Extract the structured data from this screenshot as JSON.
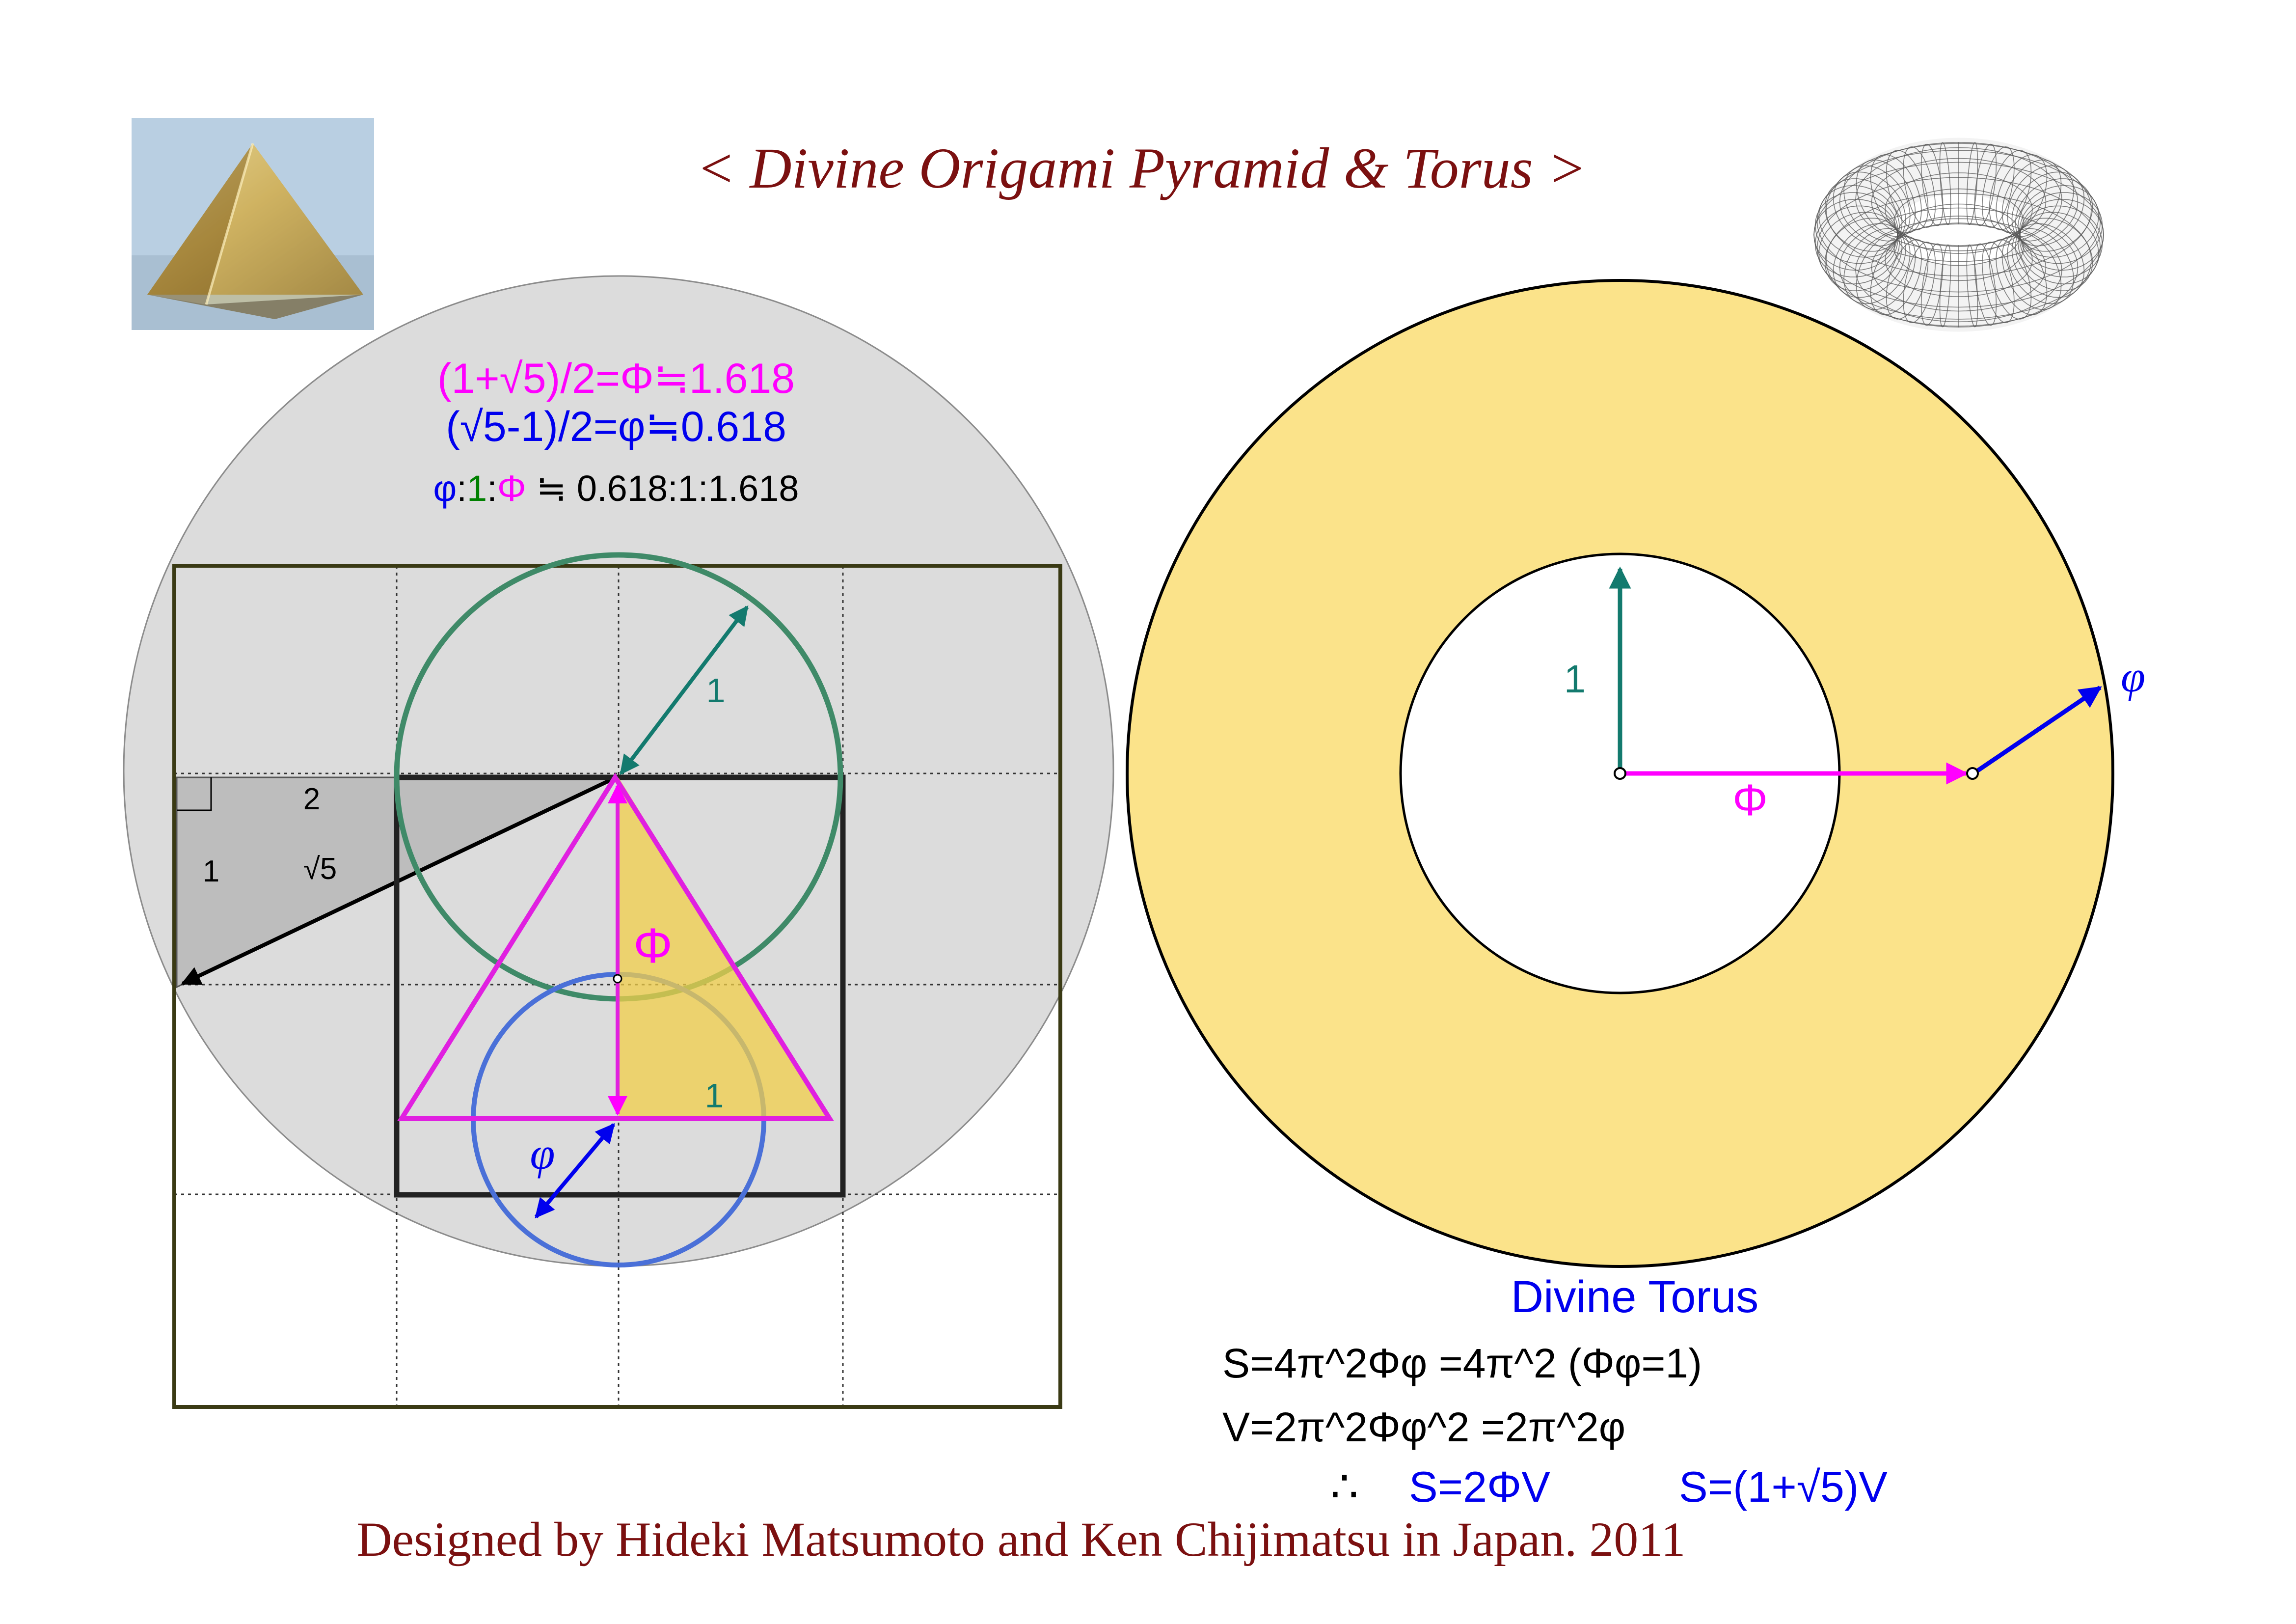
{
  "title": "< Divine Origami  Pyramid & Torus >",
  "credit": "Designed by Hideki Matsumoto and Ken Chijimatsu in Japan.   2011",
  "formulas": {
    "big_phi": "(1+√5)/2=Φ≒1.618",
    "small_phi": "(√5-1)/2=φ≒0.618",
    "ratio": {
      "phi": "φ",
      "one": "1",
      "big": "Φ",
      "rest": " ≒ 0.618:1:1.618",
      "sep": ":"
    }
  },
  "pyramid_labels": {
    "two": "2",
    "one": "1",
    "sqrt5": "√5",
    "unit_radius": "1",
    "big_phi": "Φ",
    "base_half": "1",
    "small_phi": "φ"
  },
  "torus_labels": {
    "inner_radius": "1",
    "big_phi": "Φ",
    "small_phi": "φ"
  },
  "torus_text": {
    "heading": "Divine  Torus",
    "surface": "S=4π^2Φφ  =4π^2  (Φφ=1)",
    "volume": "V=2π^2Φφ^2  =2π^2φ",
    "therefore": "∴",
    "result1": "S=2ΦV",
    "result2": "S=(1+√5)V"
  },
  "colors": {
    "title": "#7b1010",
    "magenta": "#ff00ff",
    "blue": "#0000ee",
    "green": "#008000",
    "teal": "#137a6e",
    "torus_fill": "#fbe38a",
    "pale_circle": "#dcdcdc",
    "olive": "#3a3a14"
  },
  "images": {
    "photo": "golden-origami-pyramid-photo",
    "torus": "wireframe-torus-icon"
  }
}
